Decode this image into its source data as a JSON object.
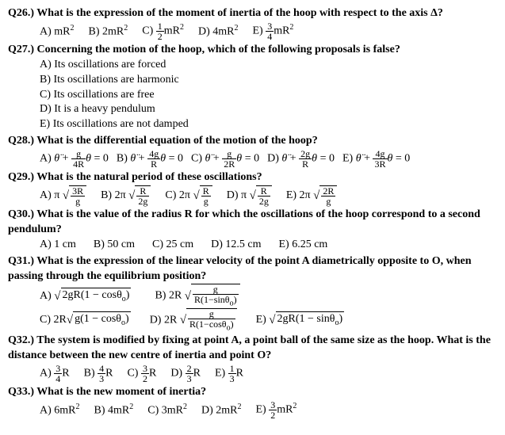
{
  "q26": {
    "prompt": "Q26.) What is the expression of the moment of inertia of the hoop with respect to the axis Δ?"
  },
  "q27": {
    "prompt": "Q27.) Concerning the motion of the hoop, which of the following proposals is false?",
    "A": "A)  Its oscillations are forced",
    "B": "B)  Its oscillations are harmonic",
    "C": "C)  Its oscillations are free",
    "D": "D)  It is a heavy pendulum",
    "E": "E)  Its oscillations are not damped"
  },
  "q28": {
    "prompt": "Q28.) What is the differential equation of the motion of the hoop?"
  },
  "q29": {
    "prompt": "Q29.) What is the natural period of these oscillations?"
  },
  "q30": {
    "prompt": "Q30.) What is the value of the radius R for which the oscillations of the hoop correspond to a second pendulum?",
    "opts": {
      "A": "A) 1 cm",
      "B": "B) 50 cm",
      "C": "C) 25 cm",
      "D": "D) 12.5 cm",
      "E": "E) 6.25 cm"
    }
  },
  "q31": {
    "prompt": "Q31.) What is the expression of the linear velocity of the point A diametrically opposite to O, when passing through the equilibrium position?"
  },
  "q32": {
    "prompt": "Q32.) The system is modified by fixing at point A, a point ball of the same size as the hoop. What is the distance between the new centre of inertia and point O?"
  },
  "q33": {
    "prompt": "Q33.) What is the new moment of inertia?"
  }
}
